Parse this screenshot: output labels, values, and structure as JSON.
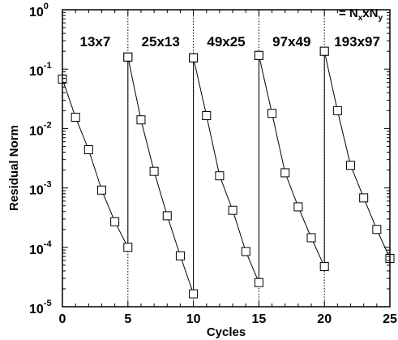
{
  "chart_data": {
    "type": "line",
    "title": "",
    "xlabel": "Cycles",
    "ylabel": "Residual Norm",
    "xlim": [
      0,
      25
    ],
    "ylim": [
      1e-05,
      1
    ],
    "y_scale": "log",
    "x_ticks": [
      "0",
      "5",
      "10",
      "15",
      "20",
      "25"
    ],
    "y_ticks": [
      {
        "base": "10",
        "exp": "0",
        "value": 1
      },
      {
        "base": "10",
        "exp": "-1",
        "value": 0.1
      },
      {
        "base": "10",
        "exp": "-2",
        "value": 0.01
      },
      {
        "base": "10",
        "exp": "-3",
        "value": 0.001
      },
      {
        "base": "10",
        "exp": "-4",
        "value": 0.0001
      },
      {
        "base": "10",
        "exp": "-5",
        "value": 1e-05
      }
    ],
    "legend": {
      "prefix": "= N",
      "sub1": "x",
      "mid": "xN",
      "sub2": "y"
    },
    "vertical_lines": [
      5,
      10,
      15,
      20,
      25
    ],
    "grid_labels": [
      {
        "label": "13x7",
        "x": 2.5
      },
      {
        "label": "25x13",
        "x": 7.5
      },
      {
        "label": "49x25",
        "x": 12.5
      },
      {
        "label": "97x49",
        "x": 17.5
      },
      {
        "label": "193x97",
        "x": 22.5
      }
    ],
    "series": [
      {
        "x": [
          0,
          1,
          2,
          3,
          4,
          5,
          5
        ],
        "y": [
          0.068,
          0.0155,
          0.0044,
          0.00092,
          0.00027,
          0.0001,
          0.16
        ]
      },
      {
        "x": [
          5,
          6,
          7,
          8,
          9,
          10,
          10
        ],
        "y": [
          0.16,
          0.014,
          0.0019,
          0.00034,
          7.2e-05,
          1.65e-05,
          0.155
        ]
      },
      {
        "x": [
          10,
          11,
          12,
          13,
          14,
          15,
          15
        ],
        "y": [
          0.155,
          0.0165,
          0.0016,
          0.00042,
          8.5e-05,
          2.55e-05,
          0.17
        ]
      },
      {
        "x": [
          15,
          16,
          17,
          18,
          19,
          20,
          20
        ],
        "y": [
          0.17,
          0.018,
          0.0018,
          0.00048,
          0.000145,
          4.75e-05,
          0.2
        ]
      },
      {
        "x": [
          20,
          21,
          22,
          23,
          24,
          25
        ],
        "y": [
          0.2,
          0.02,
          0.0024,
          0.00068,
          0.0002,
          6.5e-05
        ]
      }
    ]
  }
}
